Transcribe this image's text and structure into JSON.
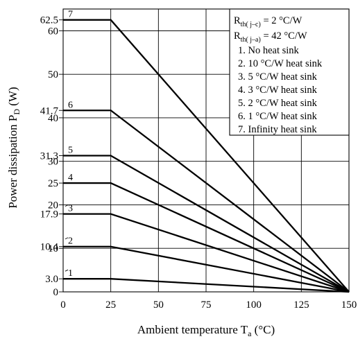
{
  "chart_data": {
    "type": "line",
    "xlabel": "Ambient temperature T",
    "xlabel_sub": "a",
    "xlabel_unit": "(°C)",
    "ylabel": "Power dissipation P",
    "ylabel_sub": "D",
    "ylabel_unit": "(W)",
    "xlim": [
      0,
      150
    ],
    "ylim": [
      0,
      65
    ],
    "x_ticks": [
      0,
      25,
      50,
      75,
      100,
      125,
      150
    ],
    "y_gridlines": [
      0,
      10,
      20,
      30,
      40,
      50,
      60
    ],
    "y_tick_labels": [
      {
        "value": 0,
        "text": "0"
      },
      {
        "value": 3,
        "text": "3.0"
      },
      {
        "value": 10,
        "text": "10"
      },
      {
        "value": 10.4,
        "text": "10.4"
      },
      {
        "value": 17.9,
        "text": "17.9"
      },
      {
        "value": 20,
        "text": "20"
      },
      {
        "value": 25,
        "text": "25"
      },
      {
        "value": 30,
        "text": "30"
      },
      {
        "value": 31.3,
        "text": "31.3"
      },
      {
        "value": 40,
        "text": "40"
      },
      {
        "value": 41.7,
        "text": "41.7"
      },
      {
        "value": 50,
        "text": "50"
      },
      {
        "value": 60,
        "text": "60"
      },
      {
        "value": 62.5,
        "text": "62.5"
      }
    ],
    "grid": true,
    "series": [
      {
        "name": "1",
        "label": "1",
        "points": [
          [
            0,
            3.0
          ],
          [
            25,
            3.0
          ],
          [
            150,
            0
          ]
        ]
      },
      {
        "name": "2",
        "label": "2",
        "points": [
          [
            0,
            10.4
          ],
          [
            25,
            10.4
          ],
          [
            150,
            0
          ]
        ]
      },
      {
        "name": "3",
        "label": "3",
        "points": [
          [
            0,
            17.9
          ],
          [
            25,
            17.9
          ],
          [
            150,
            0
          ]
        ]
      },
      {
        "name": "4",
        "label": "4",
        "points": [
          [
            0,
            25
          ],
          [
            25,
            25
          ],
          [
            150,
            0
          ]
        ]
      },
      {
        "name": "5",
        "label": "5",
        "points": [
          [
            0,
            31.3
          ],
          [
            25,
            31.3
          ],
          [
            150,
            0
          ]
        ]
      },
      {
        "name": "6",
        "label": "6",
        "points": [
          [
            0,
            41.7
          ],
          [
            25,
            41.7
          ],
          [
            150,
            0
          ]
        ]
      },
      {
        "name": "7",
        "label": "7",
        "points": [
          [
            0,
            62.5
          ],
          [
            25,
            62.5
          ],
          [
            150,
            0
          ]
        ]
      }
    ],
    "legend": {
      "placement": "top-right",
      "header": [
        {
          "main": "R",
          "sub": "th( j–c)",
          "rest": " = 2 °C/W"
        },
        {
          "main": "R",
          "sub": "th( j–a)",
          "rest": " = 42 °C/W"
        }
      ],
      "entries": [
        "1. No heat sink",
        "2. 10 °C/W heat sink",
        "3. 5 °C/W heat sink",
        "4. 3 °C/W heat sink",
        "5. 2 °C/W heat sink",
        "6. 1 °C/W heat sink",
        "7. Infinity heat sink"
      ]
    }
  }
}
